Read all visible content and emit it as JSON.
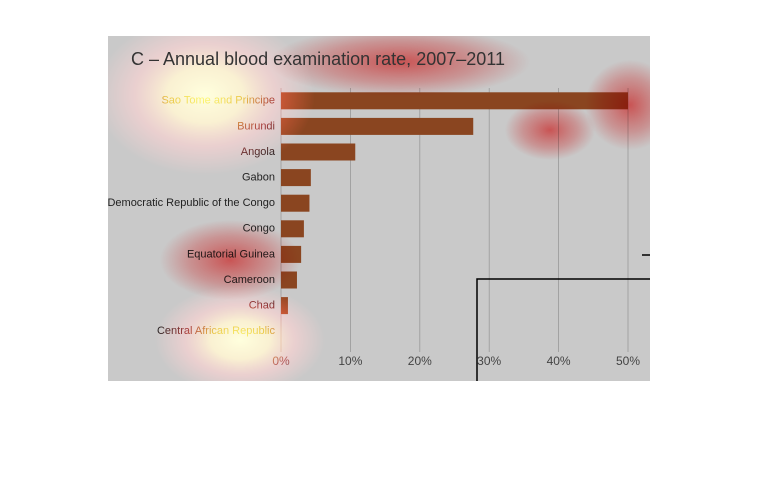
{
  "chart_data": {
    "type": "barh",
    "title": "C – Annual blood examination rate, 2007–2011",
    "categories": [
      "Sao Tome and Principe",
      "Burundi",
      "Angola",
      "Gabon",
      "Democratic Republic of the Congo",
      "Congo",
      "Equatorial Guinea",
      "Cameroon",
      "Chad",
      "Central African Republic"
    ],
    "values": [
      50,
      27.7,
      10.7,
      4.3,
      4.1,
      3.3,
      2.9,
      2.3,
      1.0,
      0
    ],
    "color": "#8a4520",
    "xlim": [
      0,
      50
    ],
    "xticks": [
      {
        "value": 0,
        "label": "0%"
      },
      {
        "value": 10,
        "label": "10%"
      },
      {
        "value": 20,
        "label": "20%"
      },
      {
        "value": 30,
        "label": "30%"
      },
      {
        "value": 40,
        "label": "40%"
      },
      {
        "value": 50,
        "label": "50%"
      }
    ],
    "grid": true
  }
}
